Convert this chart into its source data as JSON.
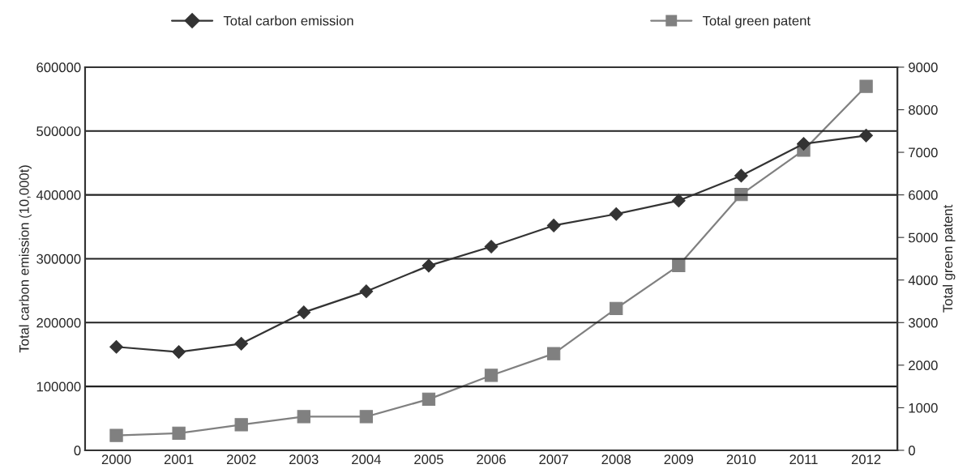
{
  "chart_data": {
    "type": "line",
    "categories": [
      "2000",
      "2001",
      "2002",
      "2003",
      "2004",
      "2005",
      "2006",
      "2007",
      "2008",
      "2009",
      "2010",
      "2011",
      "2012"
    ],
    "ylabel": "Total carbon emission (10,000t)",
    "y2label": "Total green patent",
    "ylim": [
      0,
      600000
    ],
    "yticks": [
      0,
      100000,
      200000,
      300000,
      400000,
      500000,
      600000
    ],
    "y2lim": [
      0,
      9000
    ],
    "y2ticks": [
      0,
      1000,
      2000,
      3000,
      4000,
      5000,
      6000,
      7000,
      8000,
      9000
    ],
    "grid": "y",
    "legend": "top",
    "series": [
      {
        "name": "Total carbon emission",
        "color": "#333333",
        "marker": "diamond",
        "values": [
          162000,
          154000,
          167000,
          216000,
          249000,
          289000,
          319000,
          352000,
          370000,
          391000,
          430000,
          480000,
          493000
        ]
      },
      {
        "name": "Total green patent",
        "color": "#808080",
        "marker": "square",
        "axis": "y2",
        "values": [
          350,
          400,
          600,
          790,
          790,
          1200,
          1760,
          2270,
          3330,
          4340,
          6010,
          7050,
          8550
        ]
      }
    ]
  }
}
